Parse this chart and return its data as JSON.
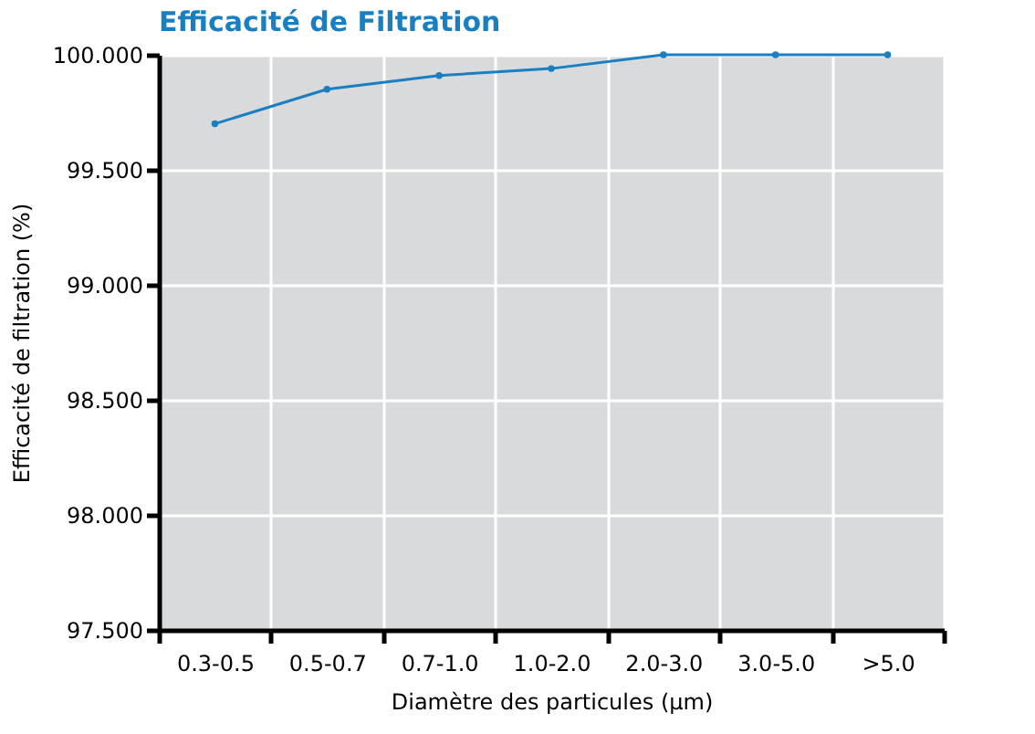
{
  "chart_data": {
    "type": "line",
    "title": "Efficacité de Filtration",
    "xlabel": "Diamètre des particules  (µm)",
    "ylabel": "Efficacité de filtration (%)",
    "categories": [
      "0.3-0.5",
      "0.5-0.7",
      "0.7-1.0",
      "1.0-2.0",
      "2.0-3.0",
      "3.0-5.0",
      ">5.0"
    ],
    "series": [
      {
        "color": "#1a7fc1",
        "values": [
          99.7,
          99.85,
          99.91,
          99.94,
          100.0,
          100.0,
          100.0
        ]
      }
    ],
    "ylim": [
      97.5,
      100.0
    ],
    "yticks": [
      {
        "value": 97.5,
        "label": "97.500"
      },
      {
        "value": 98.0,
        "label": "98.000"
      },
      {
        "value": 98.5,
        "label": "98.500"
      },
      {
        "value": 99.0,
        "label": "99.000"
      },
      {
        "value": 99.5,
        "label": "99.500"
      },
      {
        "value": 100.0,
        "label": "100.000"
      }
    ],
    "grid": true,
    "marker": "circle",
    "line_style": "solid",
    "legend": false
  }
}
